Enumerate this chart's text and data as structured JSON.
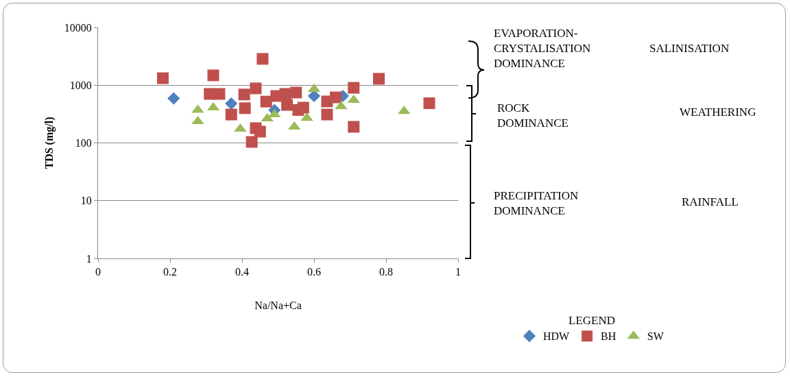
{
  "chart_data": {
    "type": "scatter",
    "xlabel": "Na/Na+Ca",
    "ylabel": "TDS (mg/l)",
    "legend_title": "LEGEND",
    "legend": "bottom right",
    "grid": "y",
    "log": "y",
    "xlim": [
      0,
      1
    ],
    "xticks": [
      0,
      0.2,
      0.4,
      0.6,
      0.8,
      1
    ],
    "ylim": [
      1,
      10000
    ],
    "yticks": [
      1,
      10,
      100,
      1000,
      10000
    ],
    "series": [
      {
        "name": "HDW",
        "color": "#4f81bd",
        "marker": "diamond",
        "x": [
          0.21,
          0.37,
          0.49,
          0.53,
          0.55,
          0.6,
          0.68
        ],
        "values": [
          590,
          480,
          370,
          null,
          null,
          650,
          650
        ]
      },
      {
        "name": "BH",
        "color": "#c0504d",
        "marker": "square",
        "x": [
          0.18,
          0.32,
          0.457,
          0.31,
          0.337,
          0.406,
          0.438,
          0.408,
          0.37,
          0.467,
          0.438,
          0.427,
          0.45,
          0.495,
          0.52,
          0.55,
          0.525,
          0.556,
          0.57,
          0.636,
          0.66,
          0.636,
          0.71,
          0.78,
          0.92,
          0.71
        ],
        "values": [
          1320,
          1480,
          2850,
          705,
          705,
          690,
          880,
          400,
          310,
          520,
          180,
          104,
          157,
          650,
          705,
          745,
          455,
          372,
          408,
          523,
          615,
          310,
          900,
          1290,
          487,
          190
        ]
      },
      {
        "name": "SW",
        "color": "#9bbb59",
        "marker": "triangle",
        "x": [
          0.277,
          0.277,
          0.32,
          0.395,
          0.47,
          0.49,
          0.6,
          0.545,
          0.58,
          0.675,
          0.71,
          0.85
        ],
        "values": [
          372,
          237,
          408,
          175,
          263,
          310,
          855,
          190,
          270,
          430,
          550,
          355
        ]
      }
    ],
    "annotations": [
      "EVAPORATION-\nCRYSTALISATION\nDOMINANCE",
      "SALINISATION",
      "ROCK\nDOMINANCE",
      "WEATHERING",
      "PRECIPITATION\nDOMINANCE",
      "RAINFALL"
    ]
  }
}
